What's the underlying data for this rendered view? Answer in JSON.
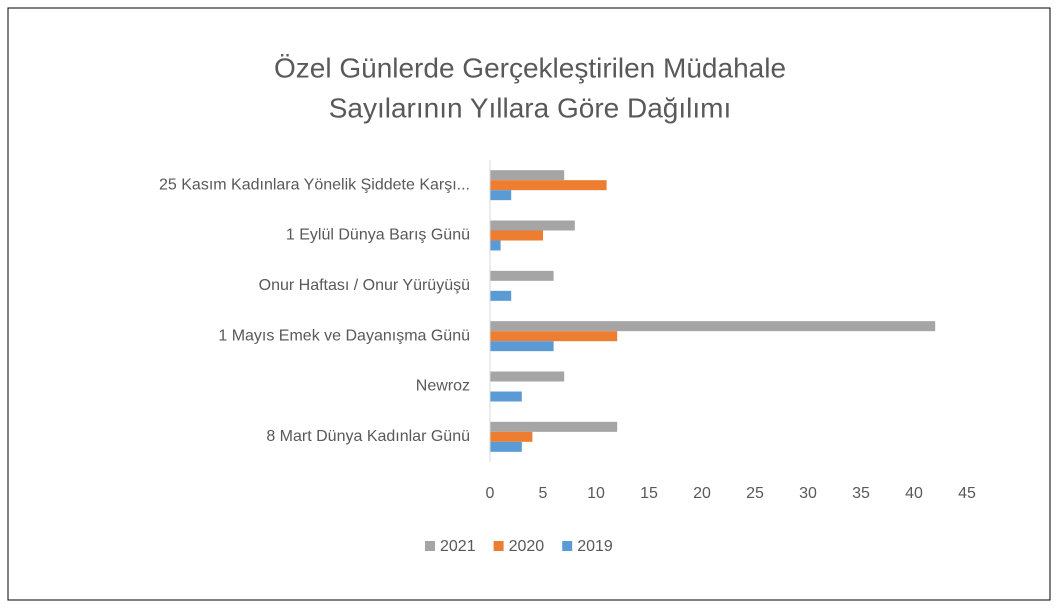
{
  "chart_data": {
    "type": "hbar",
    "title": [
      "Özel Günlerde Gerçekleştirilen Müdahale",
      "Sayılarının Yıllara Göre Dağılımı"
    ],
    "categories": [
      "25 Kasım Kadınlara Yönelik Şiddete Karşı...",
      "1 Eylül Dünya Barış Günü",
      "Onur Haftası / Onur Yürüyüşü",
      "1 Mayıs Emek ve Dayanışma Günü",
      "Newroz",
      "8 Mart Dünya Kadınlar Günü"
    ],
    "series": [
      {
        "name": "2021",
        "color": "#a5a5a5",
        "values": [
          7,
          8,
          6,
          42,
          7,
          12
        ]
      },
      {
        "name": "2020",
        "color": "#ed7d31",
        "values": [
          11,
          5,
          0,
          12,
          0,
          4
        ]
      },
      {
        "name": "2019",
        "color": "#5b9bd5",
        "values": [
          2,
          1,
          2,
          6,
          3,
          3
        ]
      }
    ],
    "xlim": [
      0,
      45
    ],
    "xticks": [
      0,
      5,
      10,
      15,
      20,
      25,
      30,
      35,
      40,
      45
    ],
    "grid": false,
    "legend": "bottom"
  }
}
